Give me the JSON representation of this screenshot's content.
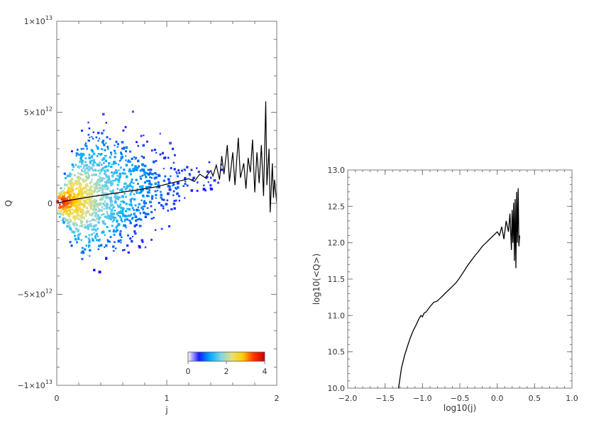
{
  "chart_data": [
    {
      "type": "heatmap",
      "xlabel": "j",
      "ylabel": "Q",
      "xlim": [
        0,
        2
      ],
      "ylim": [
        -10000000000000.0,
        10000000000000.0
      ],
      "x_ticks": [
        {
          "value": 0,
          "label": "0"
        },
        {
          "value": 1,
          "label": "1"
        },
        {
          "value": 2,
          "label": "2"
        }
      ],
      "y_ticks": [
        {
          "value": 10000000000000.0,
          "label": "1×10",
          "exp": "13"
        },
        {
          "value": 5000000000000.0,
          "label": "5×10",
          "exp": "12"
        },
        {
          "value": 0,
          "label": "0",
          "exp": ""
        },
        {
          "value": -5000000000000.0,
          "label": "−5×10",
          "exp": "12"
        },
        {
          "value": -10000000000000.0,
          "label": "−1×10",
          "exp": "13"
        }
      ],
      "colorbar": {
        "range": [
          0,
          4
        ],
        "ticks": [
          {
            "value": 0,
            "label": "0"
          },
          {
            "value": 2,
            "label": "2"
          },
          {
            "value": 4,
            "label": "4"
          }
        ],
        "colors": [
          "#ffffff",
          "#1a1aff",
          "#00aaff",
          "#7fd4e6",
          "#e8e07a",
          "#ffcc00",
          "#ff3300",
          "#cc0000"
        ]
      },
      "density_spread_per_j": [
        [
          0.0,
          320000000000.0
        ],
        [
          0.05,
          450000000000.0
        ],
        [
          0.1,
          800000000000.0
        ],
        [
          0.2,
          1300000000000.0
        ],
        [
          0.3,
          1550000000000.0
        ],
        [
          0.4,
          1600000000000.0
        ],
        [
          0.5,
          1600000000000.0
        ],
        [
          0.6,
          1550000000000.0
        ],
        [
          0.7,
          1450000000000.0
        ],
        [
          0.8,
          1300000000000.0
        ],
        [
          0.9,
          1150000000000.0
        ],
        [
          1.0,
          1000000000000.0
        ],
        [
          1.1,
          850000000000.0
        ],
        [
          1.2,
          700000000000.0
        ],
        [
          1.3,
          550000000000.0
        ]
      ],
      "series": [
        {
          "values": [
            [
              0.0,
              0
            ],
            [
              0.05,
              80000000000.0
            ],
            [
              0.1,
              150000000000.0
            ],
            [
              0.2,
              250000000000.0
            ],
            [
              0.3,
              350000000000.0
            ],
            [
              0.4,
              430000000000.0
            ],
            [
              0.5,
              530000000000.0
            ],
            [
              0.6,
              620000000000.0
            ],
            [
              0.7,
              700000000000.0
            ],
            [
              0.8,
              800000000000.0
            ],
            [
              0.9,
              900000000000.0
            ],
            [
              1.0,
              1050000000000.0
            ],
            [
              1.1,
              1200000000000.0
            ],
            [
              1.2,
              1350000000000.0
            ],
            [
              1.25,
              1200000000000.0
            ],
            [
              1.3,
              1600000000000.0
            ],
            [
              1.35,
              1400000000000.0
            ],
            [
              1.4,
              1800000000000.0
            ],
            [
              1.42,
              1500000000000.0
            ],
            [
              1.45,
              2100000000000.0
            ],
            [
              1.48,
              1300000000000.0
            ],
            [
              1.5,
              2600000000000.0
            ],
            [
              1.52,
              1600000000000.0
            ],
            [
              1.55,
              3200000000000.0
            ],
            [
              1.57,
              1200000000000.0
            ],
            [
              1.6,
              2800000000000.0
            ],
            [
              1.62,
              1000000000000.0
            ],
            [
              1.65,
              3600000000000.0
            ],
            [
              1.67,
              1400000000000.0
            ],
            [
              1.7,
              2200000000000.0
            ],
            [
              1.72,
              800000000000.0
            ],
            [
              1.74,
              2500000000000.0
            ],
            [
              1.76,
              1700000000000.0
            ],
            [
              1.78,
              3500000000000.0
            ],
            [
              1.8,
              600000000000.0
            ],
            [
              1.82,
              2800000000000.0
            ],
            [
              1.84,
              1100000000000.0
            ],
            [
              1.86,
              3200000000000.0
            ],
            [
              1.88,
              400000000000.0
            ],
            [
              1.9,
              5600000000000.0
            ],
            [
              1.91,
              1000000000000.0
            ],
            [
              1.93,
              3000000000000.0
            ],
            [
              1.94,
              -500000000000.0
            ],
            [
              1.96,
              2200000000000.0
            ],
            [
              1.97,
              300000000000.0
            ],
            [
              1.98,
              1300000000000.0
            ],
            [
              2.0,
              0.0
            ]
          ]
        }
      ]
    },
    {
      "type": "line",
      "xlabel": "log10(j)",
      "ylabel": "log10(<Q>)",
      "xlim": [
        -2.0,
        1.0
      ],
      "ylim": [
        10.0,
        13.0
      ],
      "x_ticks": [
        "−2.0",
        "−1.5",
        "−1.0",
        "−0.5",
        "0.0",
        "0.5",
        "1.0"
      ],
      "y_ticks": [
        "10.0",
        "10.5",
        "11.0",
        "11.5",
        "12.0",
        "12.5",
        "13.0"
      ],
      "series": [
        {
          "x": [
            -1.32,
            -1.28,
            -1.24,
            -1.2,
            -1.16,
            -1.12,
            -1.08,
            -1.05,
            -1.02,
            -1.0,
            -0.98,
            -0.95,
            -0.9,
            -0.85,
            -0.8,
            -0.78,
            -0.75,
            -0.7,
            -0.65,
            -0.6,
            -0.55,
            -0.5,
            -0.45,
            -0.4,
            -0.35,
            -0.3,
            -0.25,
            -0.2,
            -0.15,
            -0.1,
            -0.05,
            0.0,
            0.03,
            0.06,
            0.09,
            0.12,
            0.15,
            0.17,
            0.19,
            0.2,
            0.21,
            0.22,
            0.23,
            0.24,
            0.25,
            0.26,
            0.27,
            0.28,
            0.29,
            0.3
          ],
          "y": [
            10.0,
            10.28,
            10.45,
            10.58,
            10.7,
            10.8,
            10.88,
            10.95,
            11.0,
            10.98,
            11.03,
            11.05,
            11.12,
            11.18,
            11.2,
            11.22,
            11.25,
            11.3,
            11.35,
            11.4,
            11.45,
            11.52,
            11.6,
            11.68,
            11.75,
            11.82,
            11.88,
            11.95,
            12.0,
            12.05,
            12.1,
            12.15,
            12.1,
            12.22,
            12.05,
            12.3,
            12.15,
            12.4,
            11.9,
            12.45,
            12.0,
            12.55,
            11.75,
            12.6,
            11.65,
            12.7,
            12.0,
            12.75,
            11.95,
            12.1
          ]
        }
      ]
    }
  ]
}
